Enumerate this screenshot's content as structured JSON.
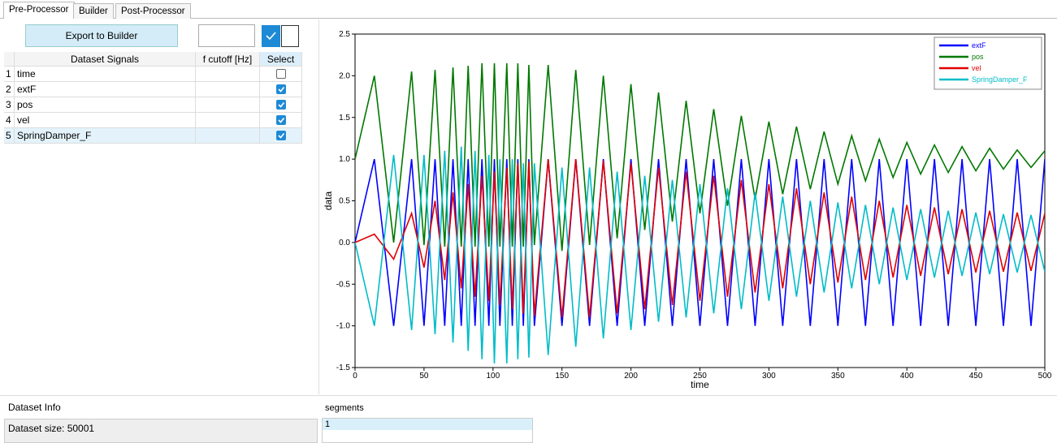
{
  "tabs": [
    "Pre-Processor",
    "Builder",
    "Post-Processor"
  ],
  "export_button": "Export to Builder",
  "toggles": [
    true,
    false
  ],
  "table": {
    "headers": [
      "Dataset Signals",
      "f cutoff [Hz]",
      "Select"
    ],
    "rows": [
      {
        "index": 1,
        "name": "time",
        "selected": false
      },
      {
        "index": 2,
        "name": "extF",
        "selected": true
      },
      {
        "index": 3,
        "name": "pos",
        "selected": true
      },
      {
        "index": 4,
        "name": "vel",
        "selected": true
      },
      {
        "index": 5,
        "name": "SpringDamper_F",
        "selected": true
      }
    ]
  },
  "dataset_info": {
    "title": "Dataset Info",
    "text": "Dataset size: 50001"
  },
  "segments": {
    "title": "segments",
    "items": [
      "1"
    ]
  },
  "chart_data": {
    "type": "line",
    "xlabel": "time",
    "ylabel": "data",
    "x": [
      0,
      14,
      28,
      41,
      50,
      58,
      65,
      71,
      77,
      82,
      87,
      92,
      97,
      101,
      105,
      110,
      114,
      118,
      122,
      126,
      130,
      140,
      150,
      160,
      170,
      180,
      190,
      200,
      210,
      220,
      230,
      240,
      250,
      260,
      270,
      280,
      290,
      300,
      310,
      320,
      330,
      340,
      350,
      360,
      370,
      380,
      390,
      400,
      410,
      420,
      430,
      440,
      450,
      460,
      470,
      480,
      490,
      500
    ],
    "xlim": [
      0,
      500
    ],
    "xticks": [
      0,
      50,
      100,
      150,
      200,
      250,
      300,
      350,
      400,
      450,
      500
    ],
    "ylim": [
      -1.5,
      2.5
    ],
    "yticks": [
      -1.5,
      {
        "value": -1,
        "label": "-1.0"
      },
      -0.5,
      {
        "value": 0,
        "label": "0.0"
      },
      0.5,
      {
        "value": 1,
        "label": "1.0"
      },
      1.5,
      {
        "value": 2,
        "label": "2.0"
      },
      2.5
    ],
    "legend": "upper right",
    "series": [
      {
        "name": "extF",
        "color": "#0000ff",
        "values": [
          0,
          1,
          -1,
          1,
          -1,
          1,
          -1,
          1,
          -1,
          1,
          -1,
          1,
          -1,
          1,
          -1,
          1,
          -1,
          1,
          -1,
          1,
          -1,
          1,
          -1,
          1,
          -1,
          1,
          -1,
          1,
          -1,
          1,
          -1,
          1,
          -1,
          1,
          -1,
          1,
          -1,
          1,
          -1,
          1,
          -1,
          1,
          -1,
          1,
          -1,
          1,
          -1,
          1,
          -1,
          1,
          -1,
          1,
          -1,
          1,
          -1,
          1,
          -1,
          1
        ]
      },
      {
        "name": "pos",
        "color": "#007800",
        "values": [
          1,
          2.0,
          0.0,
          2.05,
          -0.03,
          2.07,
          -0.05,
          2.1,
          -0.05,
          2.12,
          -0.05,
          2.15,
          -0.05,
          2.15,
          -0.05,
          2.15,
          -0.05,
          2.15,
          -0.05,
          2.13,
          -0.03,
          2.13,
          -0.1,
          2.07,
          -0.03,
          2.0,
          0.05,
          1.9,
          0.15,
          1.8,
          0.25,
          1.7,
          0.35,
          1.6,
          0.44,
          1.52,
          0.52,
          1.45,
          0.58,
          1.39,
          0.64,
          1.33,
          0.7,
          1.28,
          0.74,
          1.24,
          0.78,
          1.2,
          0.82,
          1.17,
          0.84,
          1.15,
          0.86,
          1.13,
          0.88,
          1.11,
          0.9,
          1.1
        ]
      },
      {
        "name": "vel",
        "color": "#e00000",
        "values": [
          0,
          0.1,
          -0.2,
          0.35,
          -0.3,
          0.5,
          -0.45,
          0.6,
          -0.55,
          0.7,
          -0.65,
          0.8,
          -0.7,
          0.85,
          -0.75,
          0.9,
          -0.8,
          0.95,
          -0.85,
          0.97,
          -0.88,
          1.0,
          -0.9,
          1.0,
          -0.9,
          0.98,
          -0.85,
          0.95,
          -0.8,
          0.9,
          -0.75,
          0.85,
          -0.7,
          0.8,
          -0.65,
          0.75,
          -0.6,
          0.7,
          -0.55,
          0.65,
          -0.5,
          0.6,
          -0.48,
          0.55,
          -0.45,
          0.5,
          -0.42,
          0.45,
          -0.4,
          0.42,
          -0.38,
          0.4,
          -0.36,
          0.38,
          -0.35,
          0.36,
          -0.34,
          0.35
        ]
      },
      {
        "name": "SpringDamper_F",
        "color": "#00bcc8",
        "values": [
          0,
          -1.0,
          1.05,
          -1.05,
          1.05,
          -1.1,
          1.1,
          -1.2,
          1.15,
          -1.3,
          1.1,
          -1.4,
          1.05,
          -1.45,
          1.0,
          -1.45,
          1.0,
          -1.4,
          0.95,
          -1.38,
          0.95,
          -1.35,
          0.9,
          -1.25,
          0.9,
          -1.15,
          0.85,
          -1.05,
          0.8,
          -0.95,
          0.75,
          -0.9,
          0.7,
          -0.85,
          0.65,
          -0.8,
          0.6,
          -0.7,
          0.55,
          -0.65,
          0.5,
          -0.6,
          0.48,
          -0.55,
          0.45,
          -0.5,
          0.42,
          -0.45,
          0.4,
          -0.42,
          0.38,
          -0.4,
          0.36,
          -0.38,
          0.34,
          -0.36,
          0.33,
          -0.35
        ]
      }
    ]
  }
}
